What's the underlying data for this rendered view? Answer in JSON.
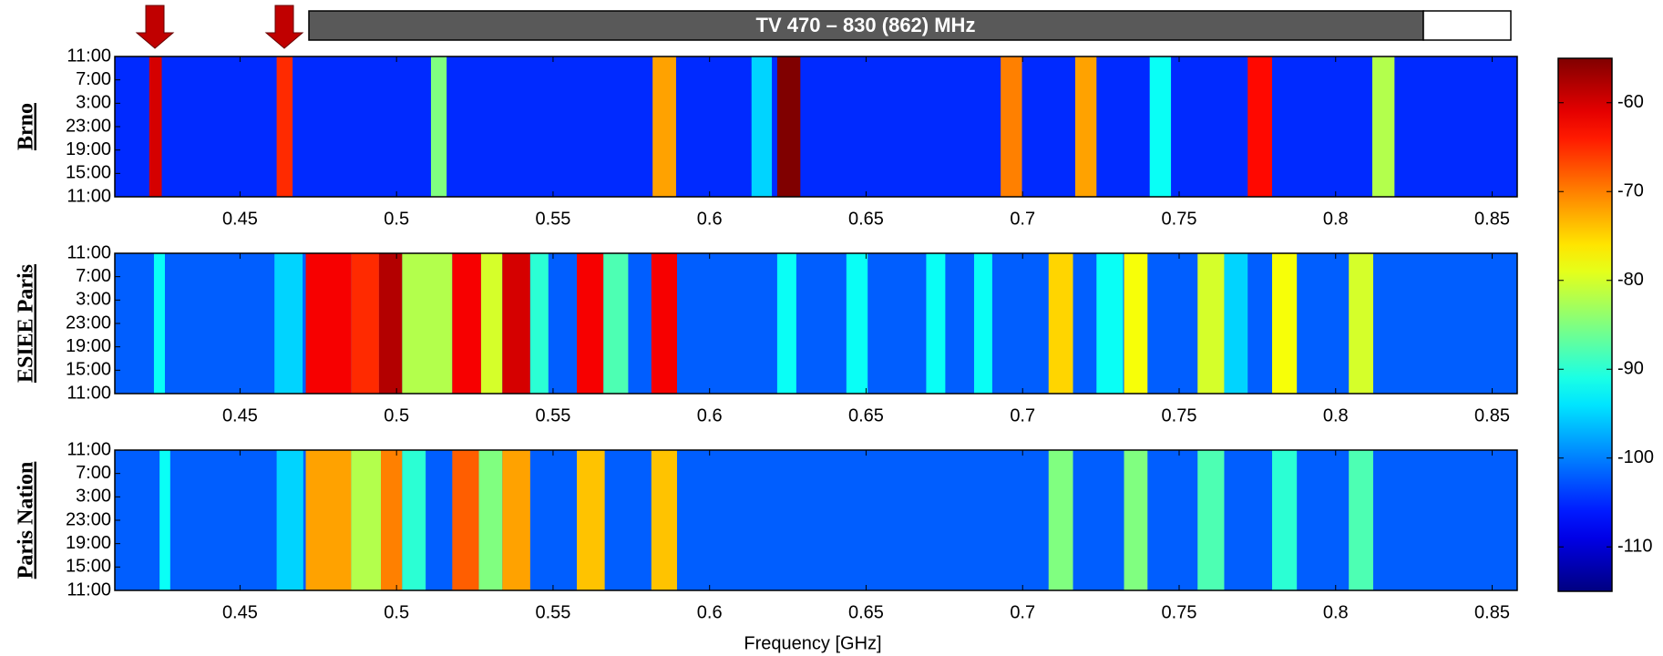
{
  "chart_data": {
    "type": "heatmap",
    "banner": "TV 470 – 830 (862) MHz",
    "x_label": "Frequency [GHz]",
    "xlim": [
      0.41,
      0.858
    ],
    "xticks": [
      0.45,
      0.5,
      0.55,
      0.6,
      0.65,
      0.7,
      0.75,
      0.8,
      0.85
    ],
    "y_categories": [
      "11:00",
      "7:00",
      "3:00",
      "23:00",
      "19:00",
      "15:00",
      "11:00"
    ],
    "colorbar": {
      "clim": [
        -115,
        -55
      ],
      "ticks": [
        -60,
        -70,
        -80,
        -90,
        -100,
        -110
      ]
    },
    "panels": [
      {
        "name": "Brno",
        "background": -105,
        "bands": [
          [
            0.421,
            0.425
          ],
          [
            0.4617,
            0.4668
          ],
          [
            0.511,
            0.516
          ],
          [
            0.5818,
            0.5893
          ],
          [
            0.6134,
            0.6199
          ],
          [
            0.6216,
            0.629
          ],
          [
            0.693,
            0.6998
          ],
          [
            0.7168,
            0.7236
          ],
          [
            0.7406,
            0.7474
          ],
          [
            0.7719,
            0.7797
          ],
          [
            0.8117,
            0.8188
          ]
        ],
        "values": [
          -60,
          -65,
          -85,
          -72,
          -95,
          -55,
          -70,
          -72,
          -92,
          -63,
          -82
        ]
      },
      {
        "name": "ESIEE Paris",
        "background": -102,
        "bands": [
          [
            0.4225,
            0.426
          ],
          [
            0.461,
            0.47
          ],
          [
            0.471,
            0.4855
          ],
          [
            0.4855,
            0.4944
          ],
          [
            0.4944,
            0.5018
          ],
          [
            0.5018,
            0.5178
          ],
          [
            0.5178,
            0.527
          ],
          [
            0.527,
            0.5338
          ],
          [
            0.5338,
            0.5427
          ],
          [
            0.5427,
            0.5485
          ],
          [
            0.5576,
            0.5661
          ],
          [
            0.5661,
            0.574
          ],
          [
            0.5814,
            0.5896
          ],
          [
            0.6216,
            0.6277
          ],
          [
            0.6437,
            0.6505
          ],
          [
            0.6692,
            0.6753
          ],
          [
            0.6845,
            0.6903
          ],
          [
            0.7083,
            0.7161
          ],
          [
            0.7236,
            0.7321
          ],
          [
            0.7324,
            0.7399
          ],
          [
            0.7559,
            0.7644
          ],
          [
            0.7644,
            0.7719
          ],
          [
            0.7797,
            0.7876
          ],
          [
            0.8042,
            0.812
          ]
        ],
        "values": [
          -92,
          -95,
          -62,
          -65,
          -58,
          -82,
          -62,
          -80,
          -60,
          -90,
          -62,
          -88,
          -62,
          -92,
          -92,
          -92,
          -92,
          -75,
          -92,
          -78,
          -80,
          -95,
          -78,
          -80
        ]
      },
      {
        "name": "Paris Nation",
        "background": -102,
        "bands": [
          [
            0.4243,
            0.4277
          ],
          [
            0.4617,
            0.4702
          ],
          [
            0.471,
            0.4855
          ],
          [
            0.4855,
            0.495
          ],
          [
            0.495,
            0.5018
          ],
          [
            0.5018,
            0.5093
          ],
          [
            0.5178,
            0.5263
          ],
          [
            0.5263,
            0.5338
          ],
          [
            0.5338,
            0.5427
          ],
          [
            0.5576,
            0.5665
          ],
          [
            0.5814,
            0.5896
          ],
          [
            0.7083,
            0.7161
          ],
          [
            0.7324,
            0.7399
          ],
          [
            0.7559,
            0.7644
          ],
          [
            0.7797,
            0.7876
          ],
          [
            0.8042,
            0.812
          ]
        ],
        "values": [
          -92,
          -95,
          -72,
          -82,
          -70,
          -90,
          -68,
          -85,
          -72,
          -74,
          -74,
          -85,
          -85,
          -88,
          -90,
          -88
        ]
      }
    ]
  }
}
